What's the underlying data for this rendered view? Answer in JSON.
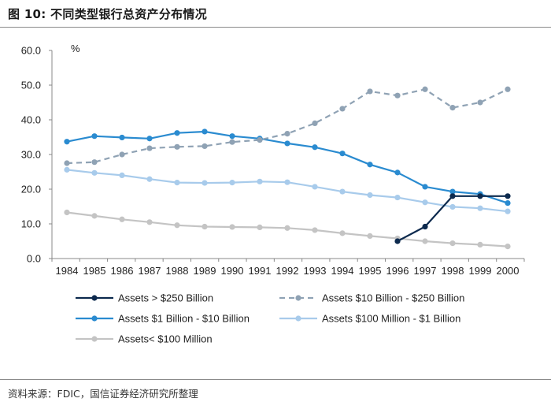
{
  "header": {
    "figure_title": "图 10:  不同类型银行总资产分布情况"
  },
  "footer": {
    "source": "资料来源：FDIC，国信证券经济研究所整理"
  },
  "chart_data": {
    "type": "line",
    "title": "不同类型银行总资产分布情况",
    "ylabel": "%",
    "xlabel": "",
    "ylim": [
      0,
      60
    ],
    "y_ticks": [
      "0.0",
      "10.0",
      "20.0",
      "30.0",
      "40.0",
      "50.0",
      "60.0"
    ],
    "categories": [
      "1984",
      "1985",
      "1986",
      "1987",
      "1988",
      "1989",
      "1990",
      "1991",
      "1992",
      "1993",
      "1994",
      "1995",
      "1996",
      "1997",
      "1998",
      "1999",
      "2000"
    ],
    "series": [
      {
        "name": "Assets > $250 Billion",
        "color": "#0d2a4e",
        "dashed": false,
        "values": [
          null,
          null,
          null,
          null,
          null,
          null,
          null,
          null,
          null,
          null,
          null,
          null,
          5.0,
          9.2,
          18.0,
          18.0,
          18.0
        ]
      },
      {
        "name": "Assets  $10 Billion - $250 Billion",
        "color": "#8fa2b4",
        "dashed": true,
        "values": [
          27.5,
          27.8,
          30.0,
          31.8,
          32.2,
          32.4,
          33.6,
          34.2,
          36.0,
          39.0,
          43.2,
          48.2,
          47.0,
          48.8,
          43.5,
          45.0,
          48.8
        ]
      },
      {
        "name": "Assets $1 Billion - $10 Billion",
        "color": "#2a8bd0",
        "dashed": false,
        "values": [
          33.7,
          35.3,
          34.9,
          34.6,
          36.2,
          36.6,
          35.3,
          34.6,
          33.2,
          32.1,
          30.3,
          27.1,
          24.8,
          20.7,
          19.3,
          18.6,
          16.0
        ]
      },
      {
        "name": "Assets $100 Million - $1 Billion",
        "color": "#a8cbeb",
        "dashed": false,
        "values": [
          25.6,
          24.7,
          24.0,
          22.9,
          21.9,
          21.8,
          21.9,
          22.2,
          22.0,
          20.7,
          19.3,
          18.3,
          17.6,
          16.2,
          14.9,
          14.5,
          13.6
        ]
      },
      {
        "name": "Assets< $100 Million",
        "color": "#c4c4c4",
        "dashed": false,
        "values": [
          13.3,
          12.3,
          11.3,
          10.5,
          9.6,
          9.2,
          9.1,
          9.0,
          8.8,
          8.2,
          7.3,
          6.5,
          5.8,
          5.0,
          4.4,
          4.0,
          3.5
        ]
      }
    ],
    "legend_position": "bottom"
  }
}
